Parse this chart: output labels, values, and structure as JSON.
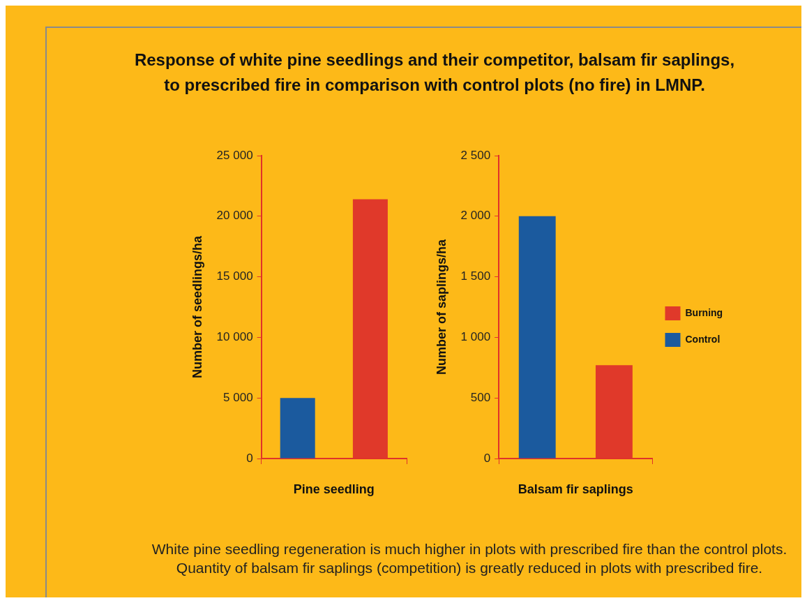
{
  "chart_data": [
    {
      "type": "bar",
      "title": "Response of white pine seedlings and their competitor, balsam fir saplings,\nto prescribed fire in comparison with control plots (no fire) in LMNP.",
      "categories": [
        null
      ],
      "xlabel": "Pine seedling",
      "ylabel": "Number of seedlings/ha",
      "ylim": [
        0,
        25000
      ],
      "yticks": [
        {
          "value": 0,
          "label": "0"
        },
        {
          "value": 5000,
          "label": "5 000"
        },
        {
          "value": 10000,
          "label": "10 000"
        },
        {
          "value": 15000,
          "label": "15 000"
        },
        {
          "value": 20000,
          "label": "20 000"
        },
        {
          "value": 25000,
          "label": "25 000"
        }
      ],
      "grid": false,
      "legend": false,
      "series": [
        {
          "color": "#1b5a9e",
          "values": [
            5000
          ]
        },
        {
          "color": "#e0392a",
          "values": [
            21400
          ]
        }
      ]
    },
    {
      "type": "bar",
      "categories": [
        null
      ],
      "xlabel": "Balsam fir saplings",
      "ylabel": "Number of saplings/ha",
      "ylim": [
        0,
        2500
      ],
      "yticks": [
        {
          "value": 0,
          "label": "0"
        },
        {
          "value": 500,
          "label": "500"
        },
        {
          "value": 1000,
          "label": "1 000"
        },
        {
          "value": 1500,
          "label": "1 500"
        },
        {
          "value": 2000,
          "label": "2 000"
        },
        {
          "value": 2500,
          "label": "2 500"
        }
      ],
      "grid": false,
      "legend": "right",
      "annotations": [
        "White pine seedling regeneration is much higher in plots with prescribed fire than the control plots. Quantity of balsam fir saplings (competition) is greatly reduced in plots with prescribed fire."
      ],
      "series": [
        {
          "name": "Control",
          "color": "#1b5a9e",
          "values": [
            2000
          ]
        },
        {
          "name": "Burning",
          "color": "#e0392a",
          "values": [
            770
          ]
        }
      ]
    }
  ]
}
